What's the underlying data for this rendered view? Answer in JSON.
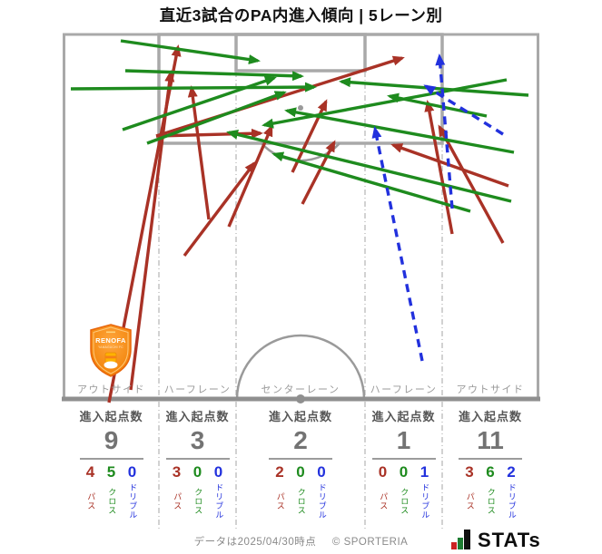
{
  "title": "直近3試合のPA内進入傾向 | 5レーン別",
  "badge": {
    "name": "RENOFA",
    "subname": "YAMAGUCHI FC"
  },
  "ui": {
    "entry_label": "進入起点数",
    "breakdown_order": [
      "pass",
      "cross",
      "dribble"
    ]
  },
  "footer": {
    "note": "データは2025/04/30時点",
    "copyright": "© SPORTERIA",
    "logo_text": "STATs"
  },
  "colors": {
    "pass": "#a93226",
    "cross": "#1e8b1e",
    "dribble": "#2231dd",
    "pitch_line": "#a9a9a9",
    "divider": "#b4b4b4",
    "big_number": "#737373",
    "label_gray": "#9a9a9a"
  },
  "chart_data": {
    "type": "pitch-arrow-map",
    "title": "直近3試合のPA内進入傾向 | 5レーン別",
    "legend_position": "none",
    "arrow_legend": {
      "pass": {
        "label": "パス",
        "color": "#a93226",
        "style": "solid"
      },
      "cross": {
        "label": "クロス",
        "color": "#1e8b1e",
        "style": "solid"
      },
      "dribble": {
        "label": "ドリブル",
        "color": "#2231dd",
        "style": "dashed"
      }
    },
    "lanes": [
      {
        "lane": "アウトサイド",
        "entry_points": 9,
        "pass": 4,
        "cross": 5,
        "dribble": 0
      },
      {
        "lane": "ハーフレーン",
        "entry_points": 3,
        "pass": 3,
        "cross": 0,
        "dribble": 0
      },
      {
        "lane": "センターレーン",
        "entry_points": 2,
        "pass": 2,
        "cross": 0,
        "dribble": 0
      },
      {
        "lane": "ハーフレーン",
        "entry_points": 1,
        "pass": 0,
        "cross": 0,
        "dribble": 1
      },
      {
        "lane": "アウトサイド",
        "entry_points": 11,
        "pass": 3,
        "cross": 6,
        "dribble": 2
      }
    ],
    "arrows": [
      {
        "type": "pass",
        "from": [
          120,
          444
        ],
        "to": [
          196,
          52
        ]
      },
      {
        "type": "pass",
        "from": [
          144,
          430
        ],
        "to": [
          188,
          80
        ]
      },
      {
        "type": "pass",
        "from": [
          172,
          150
        ],
        "to": [
          287,
          147
        ]
      },
      {
        "type": "pass",
        "from": [
          172,
          150
        ],
        "to": [
          443,
          64
        ]
      },
      {
        "type": "pass",
        "from": [
          230,
          242
        ],
        "to": [
          211,
          97
        ]
      },
      {
        "type": "pass",
        "from": [
          203,
          282
        ],
        "to": [
          280,
          180
        ]
      },
      {
        "type": "pass",
        "from": [
          252,
          250
        ],
        "to": [
          299,
          140
        ]
      },
      {
        "type": "pass",
        "from": [
          322,
          190
        ],
        "to": [
          359,
          112
        ]
      },
      {
        "type": "pass",
        "from": [
          333,
          225
        ],
        "to": [
          368,
          157
        ]
      },
      {
        "type": "pass",
        "from": [
          498,
          258
        ],
        "to": [
          471,
          113
        ]
      },
      {
        "type": "pass",
        "from": [
          554,
          268
        ],
        "to": [
          484,
          140
        ]
      },
      {
        "type": "pass",
        "from": [
          560,
          205
        ],
        "to": [
          433,
          160
        ]
      },
      {
        "type": "cross",
        "from": [
          133,
          45
        ],
        "to": [
          284,
          67
        ]
      },
      {
        "type": "cross",
        "from": [
          138,
          78
        ],
        "to": [
          332,
          84
        ]
      },
      {
        "type": "cross",
        "from": [
          78,
          98
        ],
        "to": [
          346,
          96
        ]
      },
      {
        "type": "cross",
        "from": [
          135,
          143
        ],
        "to": [
          302,
          86
        ]
      },
      {
        "type": "cross",
        "from": [
          162,
          158
        ],
        "to": [
          313,
          102
        ]
      },
      {
        "type": "cross",
        "from": [
          582,
          105
        ],
        "to": [
          376,
          90
        ]
      },
      {
        "type": "cross",
        "from": [
          563,
          222
        ],
        "to": [
          252,
          146
        ]
      },
      {
        "type": "cross",
        "from": [
          518,
          233
        ],
        "to": [
          302,
          170
        ]
      },
      {
        "type": "cross",
        "from": [
          536,
          128
        ],
        "to": [
          429,
          106
        ]
      },
      {
        "type": "cross",
        "from": [
          566,
          168
        ],
        "to": [
          316,
          122
        ]
      },
      {
        "type": "cross",
        "from": [
          558,
          88
        ],
        "to": [
          291,
          138
        ]
      },
      {
        "type": "dribble",
        "from": [
          465,
          398
        ],
        "to": [
          413,
          142
        ]
      },
      {
        "type": "dribble",
        "from": [
          554,
          148
        ],
        "to": [
          469,
          95
        ]
      },
      {
        "type": "dribble",
        "from": [
          498,
          230
        ],
        "to": [
          484,
          62
        ]
      }
    ]
  }
}
